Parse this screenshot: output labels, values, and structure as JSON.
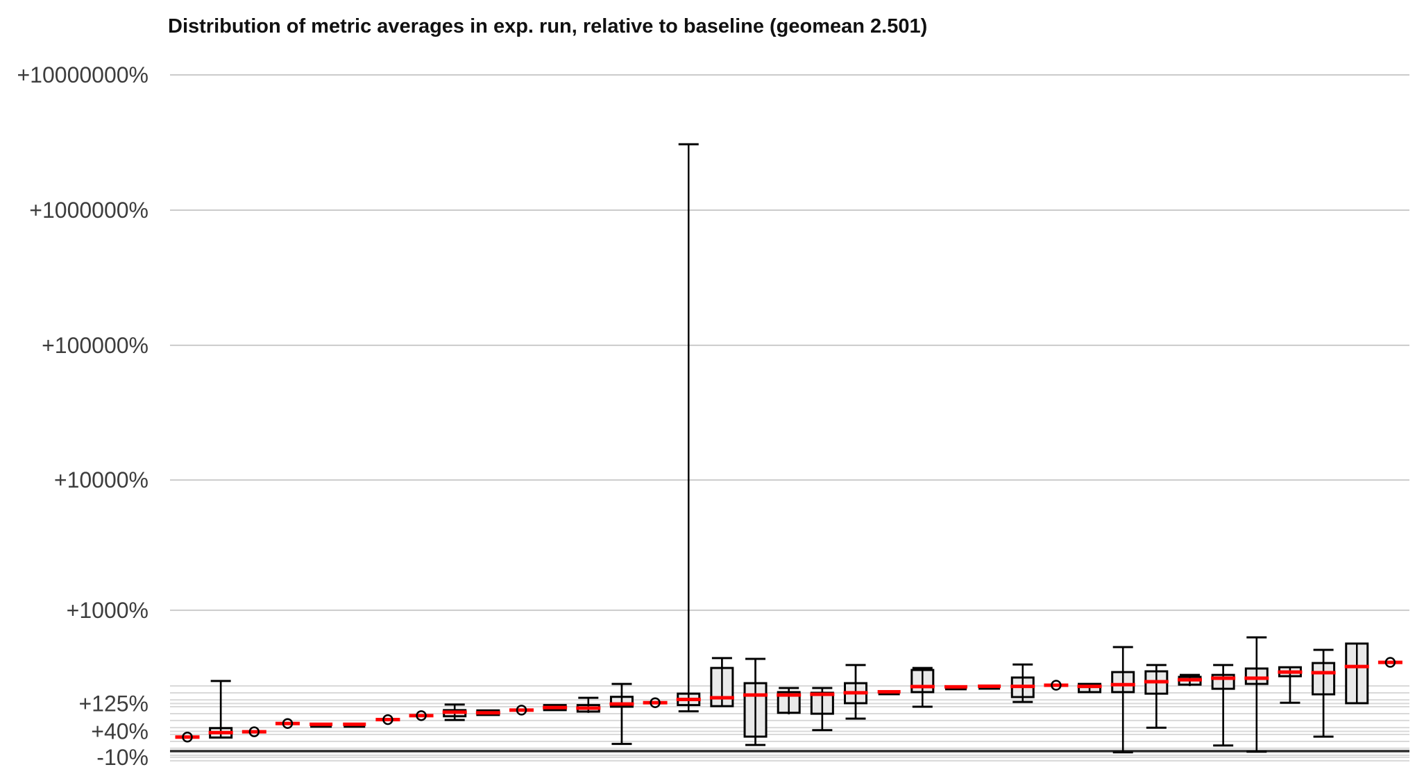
{
  "chart_data": {
    "type": "boxplot",
    "title": "Distribution of metric averages in exp. run, relative to baseline (geomean 2.501)",
    "geomean": 2.501,
    "xlabel": "",
    "ylabel": "",
    "y_scale": "log10(1 + pct/100)",
    "legend": "none",
    "grid": "on",
    "baseline_pct": 0,
    "y_ticks": [
      {
        "label": "+10000000%",
        "pct": 10000000
      },
      {
        "label": "+1000000%",
        "pct": 1000000
      },
      {
        "label": "+100000%",
        "pct": 100000
      },
      {
        "label": "+10000%",
        "pct": 10000
      },
      {
        "label": "+1000%",
        "pct": 1000
      },
      {
        "label": "+125%",
        "pct": 125
      },
      {
        "label": "+40%",
        "pct": 40
      },
      {
        "label": "-10%",
        "pct": -10
      }
    ],
    "minor_gridlines_log10": [
      0.482,
      0.431,
      0.379,
      0.328,
      0.277,
      0.226,
      0.174,
      0.123,
      0.072,
      0.021,
      -0.031,
      -0.072
    ],
    "series": [
      {
        "marker": "circle",
        "median": 27
      },
      {
        "marker": "box",
        "lo": 26,
        "q1": 26,
        "median": 37,
        "q3": 48,
        "hi": 230
      },
      {
        "marker": "circle",
        "median": 39
      },
      {
        "marker": "circle",
        "median": 60
      },
      {
        "marker": "dash",
        "median": 57
      },
      {
        "marker": "dash",
        "median": 57
      },
      {
        "marker": "circle",
        "median": 71
      },
      {
        "marker": "circle",
        "median": 83
      },
      {
        "marker": "box",
        "lo": 70,
        "q1": 81,
        "median": 94,
        "q3": 101,
        "hi": 121
      },
      {
        "marker": "box",
        "lo": 85,
        "q1": 85,
        "median": 92,
        "q3": 100,
        "hi": 100
      },
      {
        "marker": "circle",
        "median": 101
      },
      {
        "marker": "box",
        "lo": 101,
        "q1": 101,
        "median": 110,
        "q3": 119,
        "hi": 119
      },
      {
        "marker": "box",
        "lo": 92,
        "q1": 96,
        "median": 108,
        "q3": 119,
        "hi": 148
      },
      {
        "marker": "box",
        "lo": 13,
        "q1": 113,
        "median": 123,
        "q3": 152,
        "hi": 214
      },
      {
        "marker": "circle",
        "median": 128
      },
      {
        "marker": "box",
        "lo": 97,
        "q1": 119,
        "median": 141,
        "q3": 166,
        "hi": 3070000
      },
      {
        "marker": "box",
        "lo": 115,
        "q1": 115,
        "median": 148,
        "q3": 312,
        "hi": 387
      },
      {
        "marker": "box",
        "lo": 11,
        "q1": 28,
        "median": 160,
        "q3": 218,
        "hi": 381
      },
      {
        "marker": "box",
        "lo": 87,
        "q1": 92,
        "median": 160,
        "q3": 173,
        "hi": 193
      },
      {
        "marker": "box",
        "lo": 43,
        "q1": 89,
        "median": 163,
        "q3": 170,
        "hi": 193
      },
      {
        "marker": "box",
        "lo": 74,
        "q1": 126,
        "median": 170,
        "q3": 218,
        "hi": 333
      },
      {
        "marker": "dash",
        "median": 173
      },
      {
        "marker": "box",
        "lo": 113,
        "q1": 173,
        "median": 200,
        "q3": 298,
        "hi": 312
      },
      {
        "marker": "dash",
        "median": 197
      },
      {
        "marker": "dash",
        "median": 200
      },
      {
        "marker": "box",
        "lo": 131,
        "q1": 151,
        "median": 201,
        "q3": 250,
        "hi": 337
      },
      {
        "marker": "circle",
        "median": 207
      },
      {
        "marker": "box",
        "lo": 170,
        "q1": 173,
        "median": 201,
        "q3": 214,
        "hi": 218
      },
      {
        "marker": "box",
        "lo": -2,
        "q1": 173,
        "median": 210,
        "q3": 284,
        "hi": 488
      },
      {
        "marker": "box",
        "lo": 49,
        "q1": 166,
        "median": 226,
        "q3": 289,
        "hi": 333
      },
      {
        "marker": "box",
        "lo": 203,
        "q1": 210,
        "median": 237,
        "q3": 254,
        "hi": 266
      },
      {
        "marker": "box",
        "lo": 10,
        "q1": 189,
        "median": 246,
        "q3": 266,
        "hi": 333
      },
      {
        "marker": "box",
        "lo": -1,
        "q1": 214,
        "median": 246,
        "q3": 308,
        "hi": 593
      },
      {
        "marker": "box",
        "lo": 128,
        "q1": 258,
        "median": 284,
        "q3": 317,
        "hi": 317
      },
      {
        "marker": "box",
        "lo": 28,
        "q1": 163,
        "median": 280,
        "q3": 348,
        "hi": 461
      },
      {
        "marker": "box",
        "lo": 126,
        "q1": 126,
        "median": 322,
        "q3": 524,
        "hi": 524
      },
      {
        "marker": "circle",
        "median": 353
      }
    ],
    "colors": {
      "median": "#ff0000",
      "box_fill": "#e9e9e9",
      "box_stroke": "#000000",
      "whisker": "#000000",
      "gridline_major": "#cbcbcb",
      "gridline_minor": "#d9d9d9",
      "baseline": "#2d2d2d",
      "axis_label": "#3d3d3d",
      "title": "#111111",
      "background": "#ffffff"
    }
  }
}
